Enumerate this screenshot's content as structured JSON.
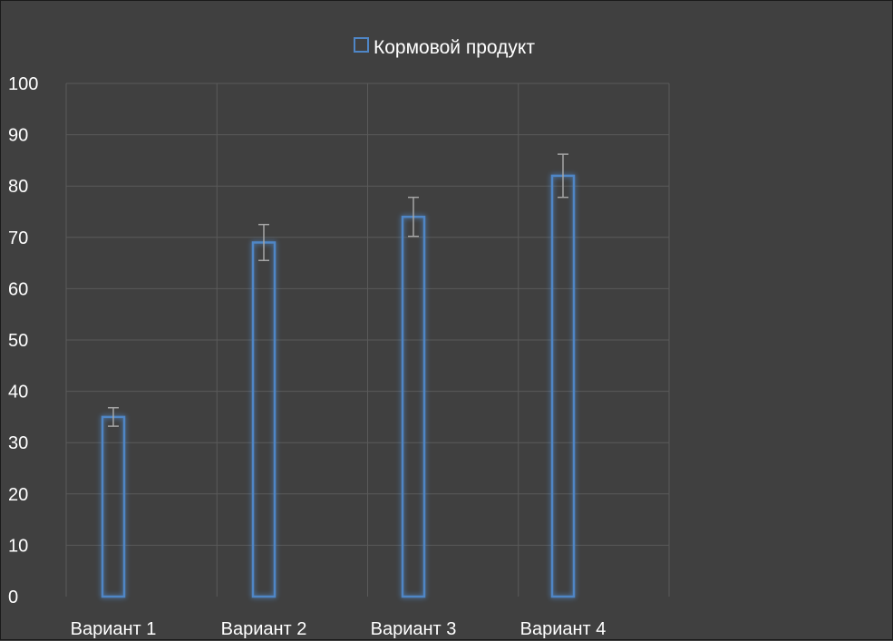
{
  "chart_data": {
    "type": "bar",
    "title": "",
    "xlabel": "",
    "ylabel": "",
    "categories": [
      "Вариант 1",
      "Вариант 2",
      "Вариант 3",
      "Вариант 4"
    ],
    "series": [
      {
        "name": "Кормовой продукт",
        "values": [
          35,
          69,
          74,
          82
        ],
        "error_bars": [
          1.8,
          3.5,
          3.8,
          4.2
        ]
      }
    ],
    "ylim": [
      0,
      100
    ],
    "yticks": [
      0,
      10,
      20,
      30,
      40,
      50,
      60,
      70,
      80,
      90,
      100
    ],
    "grid": true,
    "legend_position": "top",
    "colors": {
      "background": "#404040",
      "bar_outline": "#4f86c6",
      "bar_glow": "#2f6fd0",
      "grid": "#5a5a5a",
      "error_bar": "#a6a6a6",
      "text": "#ffffff"
    }
  }
}
